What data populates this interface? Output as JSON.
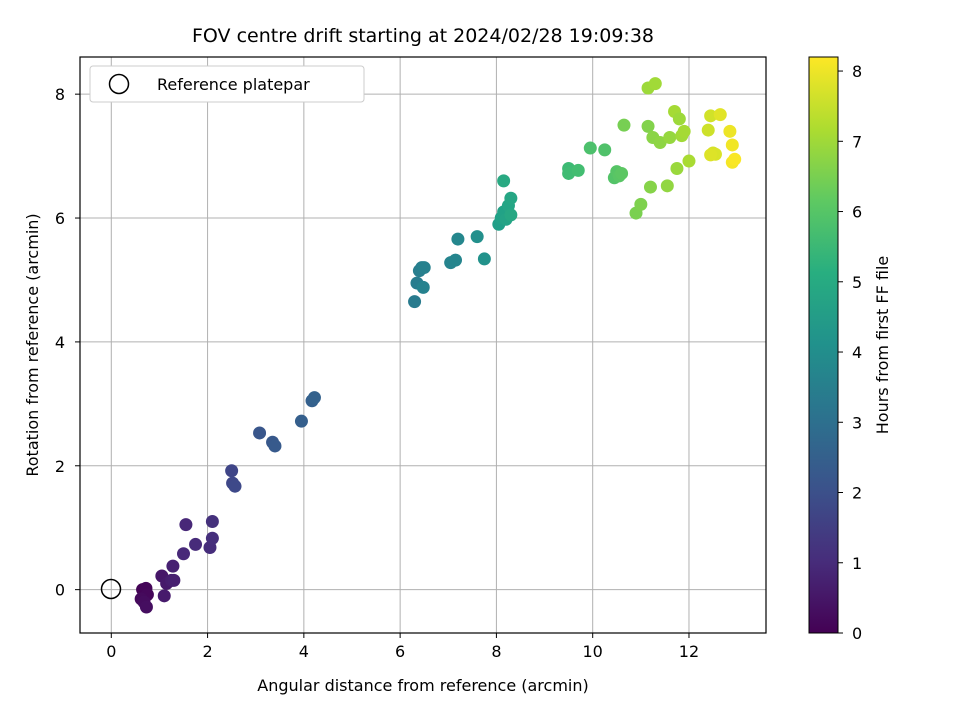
{
  "chart_data": {
    "type": "scatter",
    "title": "FOV centre drift starting at 2024/02/28 19:09:38",
    "xlabel": "Angular distance from reference (arcmin)",
    "ylabel": "Rotation from reference (arcmin)",
    "xlim": [
      -0.65,
      13.6
    ],
    "ylim": [
      -0.7,
      8.6
    ],
    "xticks": [
      0,
      2,
      4,
      6,
      8,
      10,
      12
    ],
    "yticks": [
      0,
      2,
      4,
      6,
      8
    ],
    "grid": true,
    "legend": {
      "placement": "top-left",
      "entries": [
        "Reference platepar"
      ]
    },
    "reference_point": {
      "x": 0,
      "y": 0
    },
    "colorbar": {
      "label": "Hours from first FF file",
      "colormap": "viridis",
      "range": [
        0,
        8.2
      ],
      "ticks": [
        0,
        1,
        2,
        3,
        4,
        5,
        6,
        7,
        8
      ]
    },
    "series": [
      {
        "x": [
          0.65,
          0.72,
          0.75,
          0.62,
          0.68,
          0.73,
          1.05,
          1.15,
          1.1,
          1.25,
          1.3,
          1.28,
          1.55,
          1.5,
          1.75,
          2.05,
          2.1,
          2.1,
          2.5,
          2.52,
          2.57,
          3.08,
          3.35,
          3.4,
          3.95,
          4.17,
          4.22,
          6.3,
          6.35,
          6.4,
          6.45,
          6.5,
          6.48,
          7.05,
          7.15,
          7.2,
          7.6,
          7.75,
          8.05,
          8.1,
          8.15,
          8.2,
          8.25,
          8.3,
          8.3,
          8.15,
          9.5,
          9.5,
          9.7,
          9.95,
          10.25,
          10.45,
          10.5,
          10.55,
          10.6,
          10.65,
          10.9,
          11.0,
          11.15,
          11.15,
          11.2,
          11.25,
          11.3,
          11.4,
          11.55,
          11.6,
          11.7,
          11.75,
          11.8,
          11.85,
          11.9,
          12.0,
          12.4,
          12.45,
          12.5,
          12.55,
          12.45,
          12.65,
          12.85,
          12.9,
          12.9,
          12.95
        ],
        "y": [
          0.0,
          0.02,
          -0.08,
          -0.15,
          -0.2,
          -0.28,
          0.22,
          0.1,
          -0.1,
          0.15,
          0.15,
          0.38,
          1.05,
          0.58,
          0.73,
          0.68,
          0.83,
          1.1,
          1.92,
          1.72,
          1.67,
          2.53,
          2.38,
          2.32,
          2.72,
          3.05,
          3.1,
          4.65,
          4.95,
          5.15,
          5.2,
          5.2,
          4.88,
          5.28,
          5.32,
          5.66,
          5.7,
          5.34,
          5.9,
          6.0,
          6.1,
          5.98,
          6.2,
          6.32,
          6.05,
          6.6,
          6.8,
          6.72,
          6.77,
          7.13,
          7.1,
          6.65,
          6.75,
          6.68,
          6.72,
          7.5,
          6.08,
          6.22,
          8.1,
          7.48,
          6.5,
          7.3,
          8.17,
          7.22,
          6.52,
          7.3,
          7.72,
          6.8,
          7.6,
          7.33,
          7.4,
          6.92,
          7.42,
          7.65,
          7.05,
          7.03,
          7.02,
          7.67,
          7.4,
          7.18,
          6.9,
          6.95
        ],
        "hours": [
          0.05,
          0.1,
          0.15,
          0.2,
          0.25,
          0.3,
          0.5,
          0.55,
          0.6,
          0.65,
          0.7,
          0.75,
          0.9,
          0.95,
          1.0,
          1.05,
          1.1,
          1.15,
          1.7,
          1.75,
          1.8,
          2.2,
          2.25,
          2.3,
          2.45,
          2.5,
          2.55,
          3.4,
          3.45,
          3.5,
          3.55,
          3.6,
          3.65,
          3.7,
          3.75,
          3.8,
          4.1,
          4.15,
          4.6,
          4.65,
          4.7,
          4.75,
          4.8,
          4.85,
          4.9,
          4.95,
          5.6,
          5.65,
          5.7,
          5.85,
          5.9,
          5.95,
          6.0,
          6.05,
          6.1,
          6.5,
          6.55,
          6.6,
          7.0,
          6.65,
          6.7,
          6.75,
          7.05,
          6.8,
          6.85,
          6.9,
          7.1,
          6.95,
          7.0,
          7.05,
          7.1,
          7.15,
          7.6,
          7.65,
          7.7,
          7.75,
          7.8,
          7.85,
          8.0,
          8.05,
          8.1,
          8.15
        ]
      }
    ]
  }
}
